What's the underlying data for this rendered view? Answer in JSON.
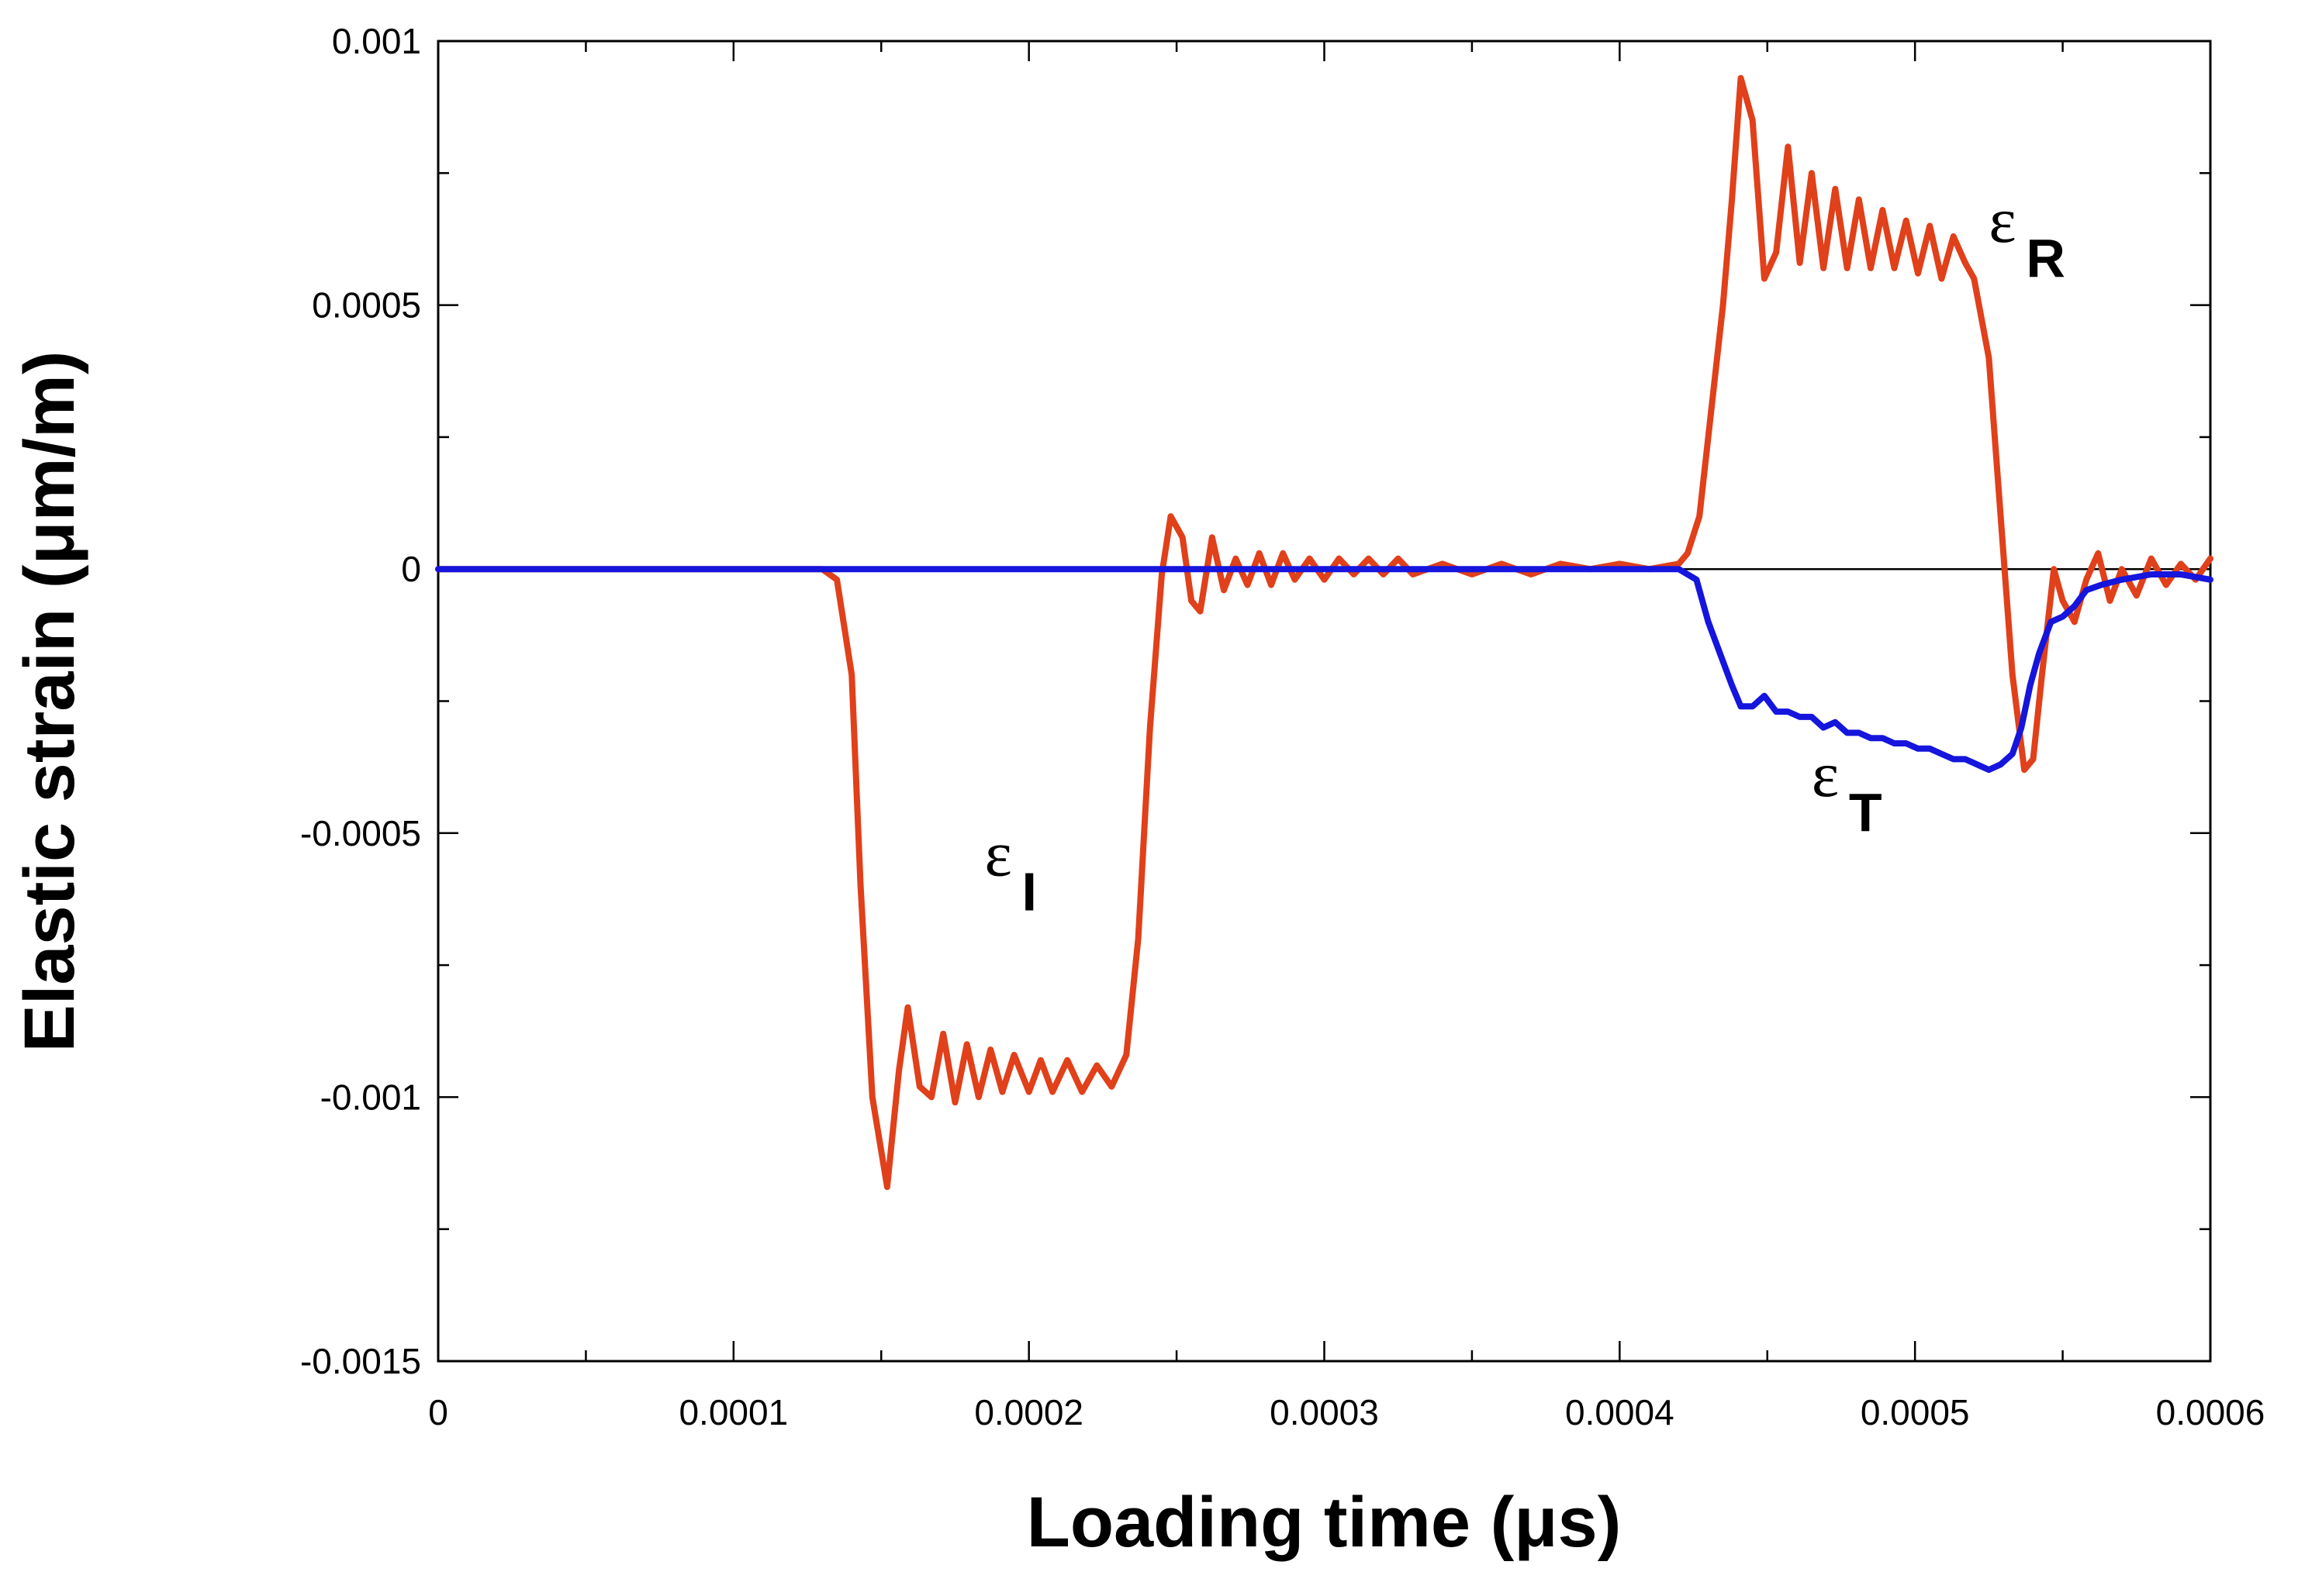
{
  "chart_data": {
    "type": "line",
    "xlabel": "Loading time (μs)",
    "ylabel": "Elastic strain (μm/m)",
    "xlim": [
      0,
      0.0006
    ],
    "ylim": [
      -0.0015,
      0.001
    ],
    "x_ticks": [
      {
        "value": 0,
        "label": "0"
      },
      {
        "value": 0.0001,
        "label": "0.0001"
      },
      {
        "value": 0.0002,
        "label": "0.0002"
      },
      {
        "value": 0.0003,
        "label": "0.0003"
      },
      {
        "value": 0.0004,
        "label": "0.0004"
      },
      {
        "value": 0.0005,
        "label": "0.0005"
      },
      {
        "value": 0.0006,
        "label": "0.0006"
      }
    ],
    "y_ticks": [
      {
        "value": 0.001,
        "label": "0.001"
      },
      {
        "value": 0.0005,
        "label": "0.0005"
      },
      {
        "value": 0,
        "label": "0"
      },
      {
        "value": -0.0005,
        "label": "-0.0005"
      },
      {
        "value": -0.001,
        "label": "-0.001"
      },
      {
        "value": -0.0015,
        "label": "-0.0015"
      }
    ],
    "grid": false,
    "zero_line": true,
    "series": [
      {
        "color": "#e0401a",
        "points": [
          [
            0,
            0
          ],
          [
            0.00013,
            0
          ],
          [
            0.000135,
            -2e-05
          ],
          [
            0.00014,
            -0.0002
          ],
          [
            0.000143,
            -0.0006
          ],
          [
            0.000147,
            -0.001
          ],
          [
            0.000152,
            -0.00117
          ],
          [
            0.000156,
            -0.00095
          ],
          [
            0.000159,
            -0.00083
          ],
          [
            0.000163,
            -0.00098
          ],
          [
            0.000167,
            -0.001
          ],
          [
            0.000171,
            -0.00088
          ],
          [
            0.000175,
            -0.00101
          ],
          [
            0.000179,
            -0.0009
          ],
          [
            0.000183,
            -0.001
          ],
          [
            0.000187,
            -0.00091
          ],
          [
            0.000191,
            -0.00099
          ],
          [
            0.000195,
            -0.00092
          ],
          [
            0.0002,
            -0.00099
          ],
          [
            0.000204,
            -0.00093
          ],
          [
            0.000208,
            -0.00099
          ],
          [
            0.000213,
            -0.00093
          ],
          [
            0.000218,
            -0.00099
          ],
          [
            0.000223,
            -0.00094
          ],
          [
            0.000228,
            -0.00098
          ],
          [
            0.000233,
            -0.00092
          ],
          [
            0.000237,
            -0.0007
          ],
          [
            0.000241,
            -0.0003
          ],
          [
            0.000245,
            -1e-05
          ],
          [
            0.000248,
            0.0001
          ],
          [
            0.000252,
            6e-05
          ],
          [
            0.000255,
            -6e-05
          ],
          [
            0.000258,
            -8e-05
          ],
          [
            0.000262,
            6e-05
          ],
          [
            0.000266,
            -4e-05
          ],
          [
            0.00027,
            2e-05
          ],
          [
            0.000274,
            -3e-05
          ],
          [
            0.000278,
            3e-05
          ],
          [
            0.000282,
            -3e-05
          ],
          [
            0.000286,
            3e-05
          ],
          [
            0.00029,
            -2e-05
          ],
          [
            0.000295,
            2e-05
          ],
          [
            0.0003,
            -2e-05
          ],
          [
            0.000305,
            2e-05
          ],
          [
            0.00031,
            -1e-05
          ],
          [
            0.000315,
            2e-05
          ],
          [
            0.00032,
            -1e-05
          ],
          [
            0.000325,
            2e-05
          ],
          [
            0.00033,
            -1e-05
          ],
          [
            0.00034,
            1e-05
          ],
          [
            0.00035,
            -1e-05
          ],
          [
            0.00036,
            1e-05
          ],
          [
            0.00037,
            -1e-05
          ],
          [
            0.00038,
            1e-05
          ],
          [
            0.00039,
            0
          ],
          [
            0.0004,
            1e-05
          ],
          [
            0.00041,
            0
          ],
          [
            0.00042,
            1e-05
          ],
          [
            0.000423,
            3e-05
          ],
          [
            0.000427,
            0.0001
          ],
          [
            0.000431,
            0.0003
          ],
          [
            0.000435,
            0.0005
          ],
          [
            0.000438,
            0.0007
          ],
          [
            0.000441,
            0.00093
          ],
          [
            0.000445,
            0.00085
          ],
          [
            0.000449,
            0.00055
          ],
          [
            0.000453,
            0.0006
          ],
          [
            0.000457,
            0.0008
          ],
          [
            0.000461,
            0.00058
          ],
          [
            0.000465,
            0.00075
          ],
          [
            0.000469,
            0.00057
          ],
          [
            0.000473,
            0.00072
          ],
          [
            0.000477,
            0.00057
          ],
          [
            0.000481,
            0.0007
          ],
          [
            0.000485,
            0.00057
          ],
          [
            0.000489,
            0.00068
          ],
          [
            0.000493,
            0.00057
          ],
          [
            0.000497,
            0.00066
          ],
          [
            0.000501,
            0.00056
          ],
          [
            0.000505,
            0.00065
          ],
          [
            0.000509,
            0.00055
          ],
          [
            0.000513,
            0.00063
          ],
          [
            0.000517,
            0.00058
          ],
          [
            0.00052,
            0.00055
          ],
          [
            0.000525,
            0.0004
          ],
          [
            0.000529,
            0.0001
          ],
          [
            0.000533,
            -0.0002
          ],
          [
            0.000537,
            -0.00038
          ],
          [
            0.00054,
            -0.00036
          ],
          [
            0.000543,
            -0.0002
          ],
          [
            0.000547,
            0
          ],
          [
            0.00055,
            -6e-05
          ],
          [
            0.000554,
            -0.0001
          ],
          [
            0.000558,
            -2e-05
          ],
          [
            0.000562,
            3e-05
          ],
          [
            0.000566,
            -6e-05
          ],
          [
            0.00057,
            0
          ],
          [
            0.000575,
            -5e-05
          ],
          [
            0.00058,
            2e-05
          ],
          [
            0.000585,
            -3e-05
          ],
          [
            0.00059,
            1e-05
          ],
          [
            0.000595,
            -2e-05
          ],
          [
            0.0006,
            2e-05
          ]
        ]
      },
      {
        "color": "#1515dd",
        "points": [
          [
            0,
            0
          ],
          [
            0.00042,
            0
          ],
          [
            0.000426,
            -2e-05
          ],
          [
            0.00043,
            -0.0001
          ],
          [
            0.000434,
            -0.00016
          ],
          [
            0.000438,
            -0.00022
          ],
          [
            0.000441,
            -0.00026
          ],
          [
            0.000445,
            -0.00026
          ],
          [
            0.000449,
            -0.00024
          ],
          [
            0.000453,
            -0.00027
          ],
          [
            0.000457,
            -0.00027
          ],
          [
            0.000461,
            -0.00028
          ],
          [
            0.000465,
            -0.00028
          ],
          [
            0.000469,
            -0.0003
          ],
          [
            0.000473,
            -0.00029
          ],
          [
            0.000477,
            -0.00031
          ],
          [
            0.000481,
            -0.00031
          ],
          [
            0.000485,
            -0.00032
          ],
          [
            0.000489,
            -0.00032
          ],
          [
            0.000493,
            -0.00033
          ],
          [
            0.000497,
            -0.00033
          ],
          [
            0.000501,
            -0.00034
          ],
          [
            0.000505,
            -0.00034
          ],
          [
            0.000509,
            -0.00035
          ],
          [
            0.000513,
            -0.00036
          ],
          [
            0.000517,
            -0.00036
          ],
          [
            0.000521,
            -0.00037
          ],
          [
            0.000525,
            -0.00038
          ],
          [
            0.000529,
            -0.00037
          ],
          [
            0.000533,
            -0.00035
          ],
          [
            0.000536,
            -0.0003
          ],
          [
            0.000539,
            -0.00022
          ],
          [
            0.000542,
            -0.00016
          ],
          [
            0.000546,
            -0.0001
          ],
          [
            0.00055,
            -9e-05
          ],
          [
            0.000554,
            -7e-05
          ],
          [
            0.000558,
            -4e-05
          ],
          [
            0.000563,
            -3e-05
          ],
          [
            0.00057,
            -2e-05
          ],
          [
            0.00058,
            -1e-05
          ],
          [
            0.00059,
            -1e-05
          ],
          [
            0.0006,
            -2e-05
          ]
        ]
      }
    ],
    "annotations": [
      {
        "symbol": "ε",
        "sub": "I",
        "x": 0.000185,
        "y": -0.00058
      },
      {
        "symbol": "ε",
        "sub": "R",
        "x": 0.000525,
        "y": 0.00062
      },
      {
        "symbol": "ε",
        "sub": "T",
        "x": 0.000465,
        "y": -0.00043
      }
    ]
  }
}
